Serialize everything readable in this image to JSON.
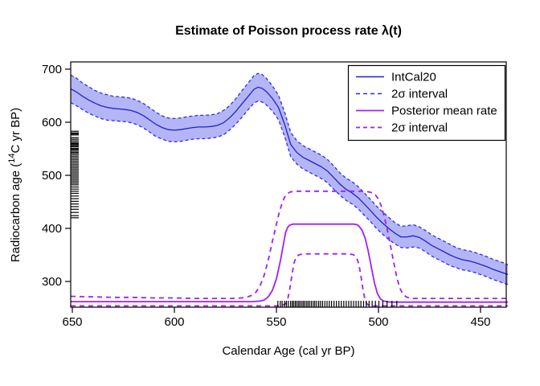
{
  "title": "Estimate of Poisson process rate λ(t)",
  "axes": {
    "x": {
      "label": "Calendar Age (cal yr BP)",
      "ticks": [
        650,
        600,
        550,
        500,
        450
      ],
      "range_left_to_right": [
        650.8,
        436.6
      ],
      "reversed": true
    },
    "y": {
      "label_prefix": "Radiocarbon age (",
      "label_sup": "14",
      "label_suffix": "C yr BP)",
      "ticks": [
        300,
        400,
        500,
        600,
        700
      ],
      "range_bottom_to_top": [
        251.5,
        713.6
      ]
    }
  },
  "legend": {
    "items": [
      {
        "label": "IntCal20",
        "style": "solid",
        "color_key": "intcal_solid"
      },
      {
        "label": "2σ interval",
        "style": "dashed",
        "color_key": "intcal_dashed"
      },
      {
        "label": "Posterior mean rate",
        "style": "solid",
        "color_key": "posterior"
      },
      {
        "label": "2σ interval",
        "style": "dashed",
        "color_key": "posterior"
      }
    ]
  },
  "colors": {
    "intcal_solid": "#2121cc",
    "intcal_dashed": "#2d2dee",
    "intcal_band": "#b4b5f6",
    "posterior": "#a020f0",
    "rug": "#000000",
    "frame": "#000000",
    "background": "#ffffff"
  },
  "chart_data": {
    "type": "line",
    "title": "Estimate of Poisson process rate λ(t)",
    "xlabel": "Calendar Age (cal yr BP)",
    "ylabel": "Radiocarbon age (14C yr BP)",
    "x_axis_reversed": true,
    "xlim": [
      650.8,
      436.6
    ],
    "ylim": [
      251.5,
      713.6
    ],
    "grid": false,
    "legend_position": "top-right",
    "series": [
      {
        "name": "IntCal20",
        "style": "solid-line-with-2sigma-band",
        "x": [
          650.8,
          648,
          645,
          642,
          639,
          636,
          633,
          630,
          627,
          624,
          621,
          618,
          615,
          612,
          609,
          606,
          603,
          600,
          597,
          594,
          591,
          588,
          585,
          582,
          579,
          576,
          573,
          570,
          567,
          564,
          561,
          559,
          557,
          555,
          552,
          549,
          546,
          543,
          540,
          537,
          534,
          531,
          528,
          525,
          522,
          519,
          516,
          513,
          510,
          507,
          504,
          501,
          498,
          495,
          492,
          489,
          486,
          483,
          480,
          477,
          474,
          471,
          468,
          465,
          462,
          459,
          456,
          453,
          450,
          447,
          444,
          441,
          438,
          436.6
        ],
        "y": [
          663,
          657,
          649,
          642,
          636,
          631,
          628,
          626,
          625,
          624,
          622,
          618,
          612,
          604,
          596,
          590,
          586,
          585,
          586,
          588,
          590,
          591,
          591,
          592,
          594,
          599,
          608,
          620,
          634,
          648,
          662,
          666,
          664,
          658,
          645,
          628,
          596,
          558,
          543,
          534,
          528,
          522,
          516,
          508,
          496,
          484,
          474,
          467,
          458,
          446,
          434,
          421,
          410,
          400,
          391,
          384,
          384,
          386,
          383,
          376,
          368,
          362,
          356,
          350,
          345,
          341,
          339,
          336,
          332,
          328,
          323,
          319,
          315,
          313
        ],
        "sigma2_halfwidth": [
          26,
          26,
          25,
          25,
          24,
          24,
          24,
          23,
          23,
          23,
          23,
          23,
          23,
          23,
          23,
          22,
          22,
          22,
          22,
          22,
          22,
          22,
          22,
          22,
          22,
          23,
          23,
          24,
          25,
          25,
          26,
          26,
          26,
          25,
          24,
          23,
          23,
          23,
          22,
          22,
          22,
          22,
          22,
          22,
          22,
          21,
          21,
          21,
          21,
          21,
          21,
          21,
          21,
          21,
          20,
          20,
          21,
          21,
          20,
          20,
          20,
          20,
          20,
          20,
          19,
          19,
          19,
          19,
          19,
          19,
          19,
          19,
          19,
          19
        ]
      },
      {
        "name": "Posterior mean rate",
        "style": "solid",
        "x": [
          650.8,
          640,
          630,
          620,
          610,
          600,
          590,
          580,
          570,
          562,
          558,
          556,
          554,
          552,
          550,
          548,
          546.5,
          545.5,
          544.5,
          543.5,
          542,
          540,
          535,
          530,
          525,
          520,
          515,
          512,
          510.5,
          509.5,
          508,
          506.5,
          505,
          503.5,
          502,
          500.5,
          499,
          497.5,
          496,
          494,
          490,
          485,
          480,
          470,
          460,
          450,
          440,
          436.6
        ],
        "y": [
          262,
          262,
          262,
          262,
          262,
          262,
          262,
          262,
          262,
          262,
          263,
          265,
          271,
          283,
          305,
          340,
          372,
          392,
          402,
          406,
          408,
          408,
          408,
          408,
          408,
          408,
          408,
          408,
          407,
          404,
          396,
          381,
          357,
          327,
          298,
          277,
          267,
          263,
          262,
          261,
          261,
          261,
          261,
          261,
          261,
          261,
          261,
          261
        ]
      },
      {
        "name": "Posterior 2σ upper",
        "style": "dashed",
        "x": [
          650.8,
          640,
          630,
          620,
          610,
          600,
          590,
          580,
          572,
          567,
          564,
          562,
          560,
          558,
          556,
          554,
          552,
          550,
          548.5,
          547,
          546,
          544.5,
          543,
          540,
          535,
          530,
          525,
          520,
          515,
          510,
          507,
          505,
          503,
          501.5,
          500,
          498.5,
          497,
          495.5,
          494,
          492.5,
          491,
          489.5,
          488,
          486.5,
          485,
          483,
          480,
          475,
          470,
          460,
          450,
          440,
          436.6
        ],
        "y": [
          272,
          271,
          270,
          270,
          269,
          269,
          268,
          268,
          268,
          269,
          271,
          274,
          280,
          292,
          312,
          340,
          375,
          408,
          432,
          450,
          459,
          466,
          469,
          470,
          470,
          470,
          470,
          470,
          470,
          470,
          470,
          469,
          467,
          463,
          455,
          441,
          420,
          394,
          365,
          335,
          307,
          287,
          276,
          271,
          269,
          268,
          268,
          268,
          268,
          268,
          268,
          268,
          268
        ]
      },
      {
        "name": "Posterior 2σ lower",
        "style": "dashed",
        "x": [
          650.8,
          640,
          630,
          620,
          610,
          600,
          590,
          580,
          570,
          560,
          550,
          547,
          545.5,
          544.5,
          543.5,
          542.5,
          541.5,
          540.5,
          539,
          537,
          534,
          530,
          525,
          520,
          516,
          513,
          511.5,
          510.5,
          509.5,
          508.5,
          507.5,
          506.5,
          505.5,
          504.5,
          503,
          500,
          495,
          490,
          480,
          470,
          460,
          450,
          440,
          436.6
        ],
        "y": [
          254,
          254,
          254,
          254,
          254,
          254,
          254,
          254,
          254,
          254,
          254,
          255,
          258,
          266,
          285,
          310,
          333,
          345,
          350,
          352,
          352,
          352,
          352,
          352,
          352,
          351,
          349,
          343,
          330,
          308,
          283,
          264,
          257,
          255,
          254,
          254,
          254,
          254,
          254,
          254,
          254,
          254,
          254,
          254
        ]
      }
    ],
    "rugs": {
      "left_radiocarbon_ages": [
        583,
        580,
        578,
        576,
        571,
        568,
        565,
        562,
        560,
        558,
        556,
        554,
        551,
        549,
        547,
        544,
        542,
        539,
        536,
        533,
        530,
        527,
        524,
        521,
        518,
        515,
        512,
        509,
        506,
        503,
        500,
        497,
        494,
        491,
        488,
        485,
        482,
        478,
        474,
        470,
        466,
        461,
        456,
        451,
        446,
        441,
        436,
        430,
        424,
        420
      ],
      "bottom_calendar_ages": [
        549.3,
        548.1,
        547.2,
        546.0,
        545.1,
        544.2,
        543.1,
        542.3,
        541.6,
        540.8,
        540.1,
        539.3,
        538.6,
        537.8,
        537.0,
        536.3,
        535.4,
        534.6,
        533.8,
        532.9,
        532.0,
        531.2,
        530.3,
        529.3,
        528.4,
        527.4,
        526.3,
        525.2,
        524.1,
        523.0,
        521.8,
        520.6,
        519.4,
        518.2,
        517.0,
        515.8,
        514.6,
        513.4,
        512.2,
        511.0,
        509.8,
        508.6,
        507.3,
        506.0,
        504.6,
        503.1,
        501.5,
        499.8,
        497.9,
        495.8,
        493.4,
        491.0
      ]
    }
  }
}
